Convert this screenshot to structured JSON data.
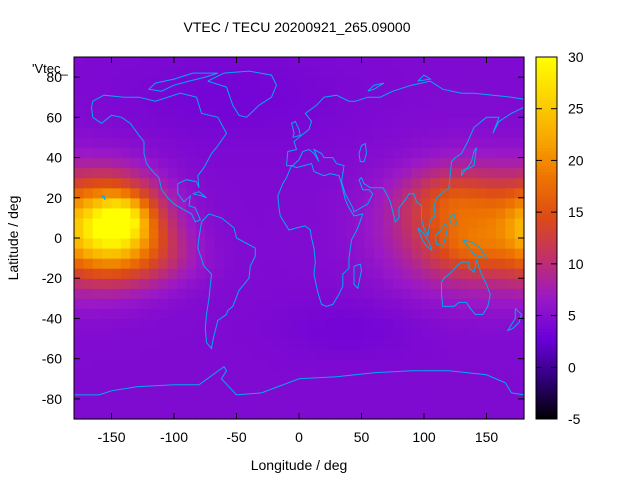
{
  "chart_data": {
    "type": "heatmap",
    "title": "VTEC / TECU 20200921_265.09000",
    "xlabel": "Longitude / deg",
    "ylabel": "Latitude / deg",
    "xlim": [
      -180,
      180
    ],
    "ylim": [
      -90,
      90
    ],
    "x_ticks": [
      -150,
      -100,
      -50,
      0,
      50,
      100,
      150
    ],
    "y_ticks": [
      -80,
      -60,
      -40,
      -20,
      0,
      20,
      40,
      60,
      80
    ],
    "legend_entry": "'Vtec_",
    "colorbar": {
      "min": -5,
      "max": 30,
      "ticks": [
        -5,
        0,
        5,
        10,
        15,
        20,
        25,
        30
      ],
      "palette": [
        "#000000",
        "#30007a",
        "#6a00d9",
        "#9a18c8",
        "#c0306a",
        "#dc4a18",
        "#ee7400",
        "#f8a800",
        "#fcd400",
        "#ffff00"
      ]
    },
    "grid": false,
    "background_level": 4.5,
    "features": [
      {
        "lon": -150,
        "lat": 5,
        "sigma_lon": 28,
        "sigma_lat": 16,
        "value": 22
      },
      {
        "lon": -140,
        "lat": 10,
        "sigma_lon": 12,
        "sigma_lat": 7,
        "value": 7
      },
      {
        "lon": 140,
        "lat": 5,
        "sigma_lon": 45,
        "sigma_lat": 20,
        "value": 11
      },
      {
        "lon": 120,
        "lat": 20,
        "sigma_lon": 25,
        "sigma_lat": 10,
        "value": 4
      },
      {
        "lon": 135,
        "lat": -5,
        "sigma_lon": 20,
        "sigma_lat": 8,
        "value": 3
      },
      {
        "lon": -110,
        "lat": -10,
        "sigma_lon": 25,
        "sigma_lat": 10,
        "value": 3
      },
      {
        "lon": 40,
        "lat": -45,
        "sigma_lon": 40,
        "sigma_lat": 10,
        "value": -1
      },
      {
        "lon": -50,
        "lat": 70,
        "sigma_lon": 60,
        "sigma_lat": 15,
        "value": -1
      }
    ],
    "coastline_color": "#00aaee"
  }
}
